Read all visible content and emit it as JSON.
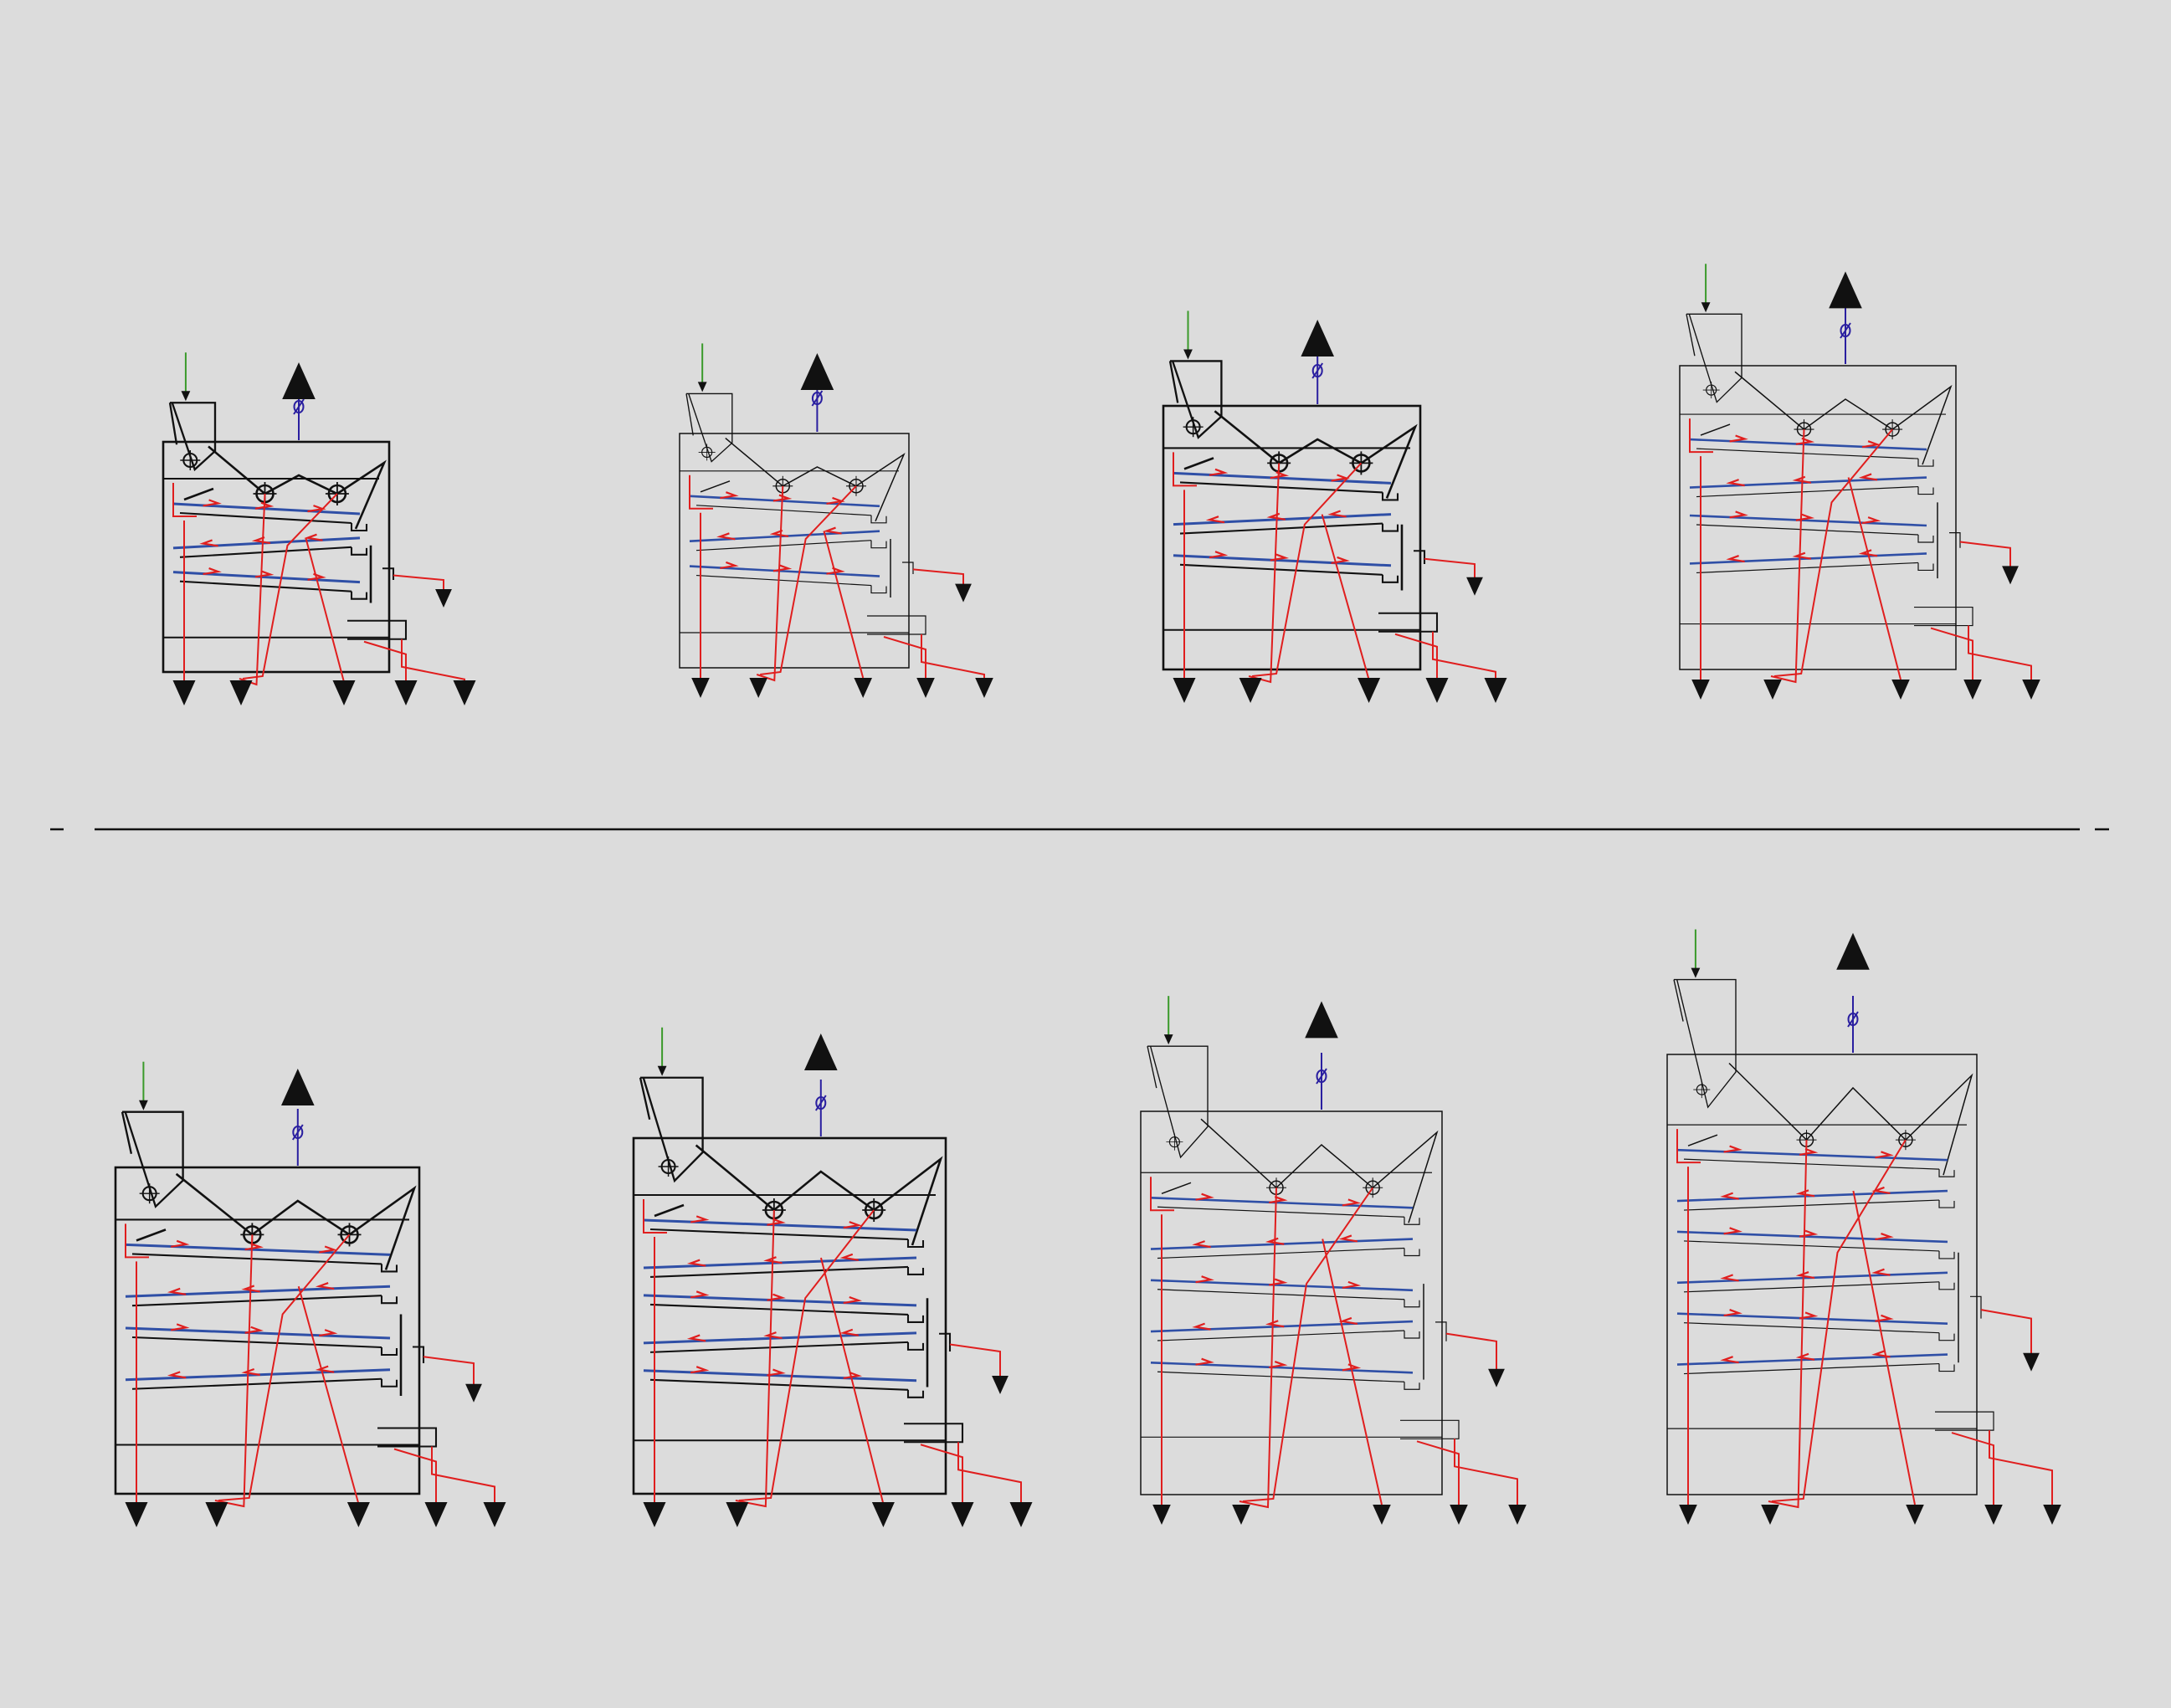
{
  "colors": {
    "background": "#dcdcdc",
    "housing": "#111111",
    "sieve": "#2f4fa6",
    "product_flow": "#e01e1e",
    "inlet": "#3a9a2a",
    "aspiration": "#2a1fa0",
    "divider": "#111111"
  },
  "icons": {
    "inlet": "down-arrow-icon",
    "aspiration_outlet": "up-arrow-icon",
    "fan": "fan-circle-icon",
    "outlet": "down-arrow-icon",
    "damper": "slashed-circle-icon"
  },
  "diagram": {
    "type": "sieve-cleaner-flow-schematics",
    "rows": 2,
    "variants": [
      {
        "id": 1,
        "row": 1,
        "sieve_pairs": 2,
        "outlets": 5,
        "line_weight": "bold"
      },
      {
        "id": 2,
        "row": 1,
        "sieve_pairs": 2,
        "outlets": 5,
        "line_weight": "thin"
      },
      {
        "id": 3,
        "row": 1,
        "sieve_pairs": 2,
        "outlets": 5,
        "line_weight": "bold"
      },
      {
        "id": 4,
        "row": 1,
        "sieve_pairs": 3,
        "outlets": 5,
        "line_weight": "thin"
      },
      {
        "id": 5,
        "row": 2,
        "sieve_pairs": 3,
        "outlets": 5,
        "line_weight": "bold"
      },
      {
        "id": 6,
        "row": 2,
        "sieve_pairs": 4,
        "outlets": 5,
        "line_weight": "bold"
      },
      {
        "id": 7,
        "row": 2,
        "sieve_pairs": 4,
        "outlets": 5,
        "line_weight": "thin"
      },
      {
        "id": 8,
        "row": 2,
        "sieve_pairs": 5,
        "outlets": 5,
        "line_weight": "thin"
      }
    ]
  }
}
